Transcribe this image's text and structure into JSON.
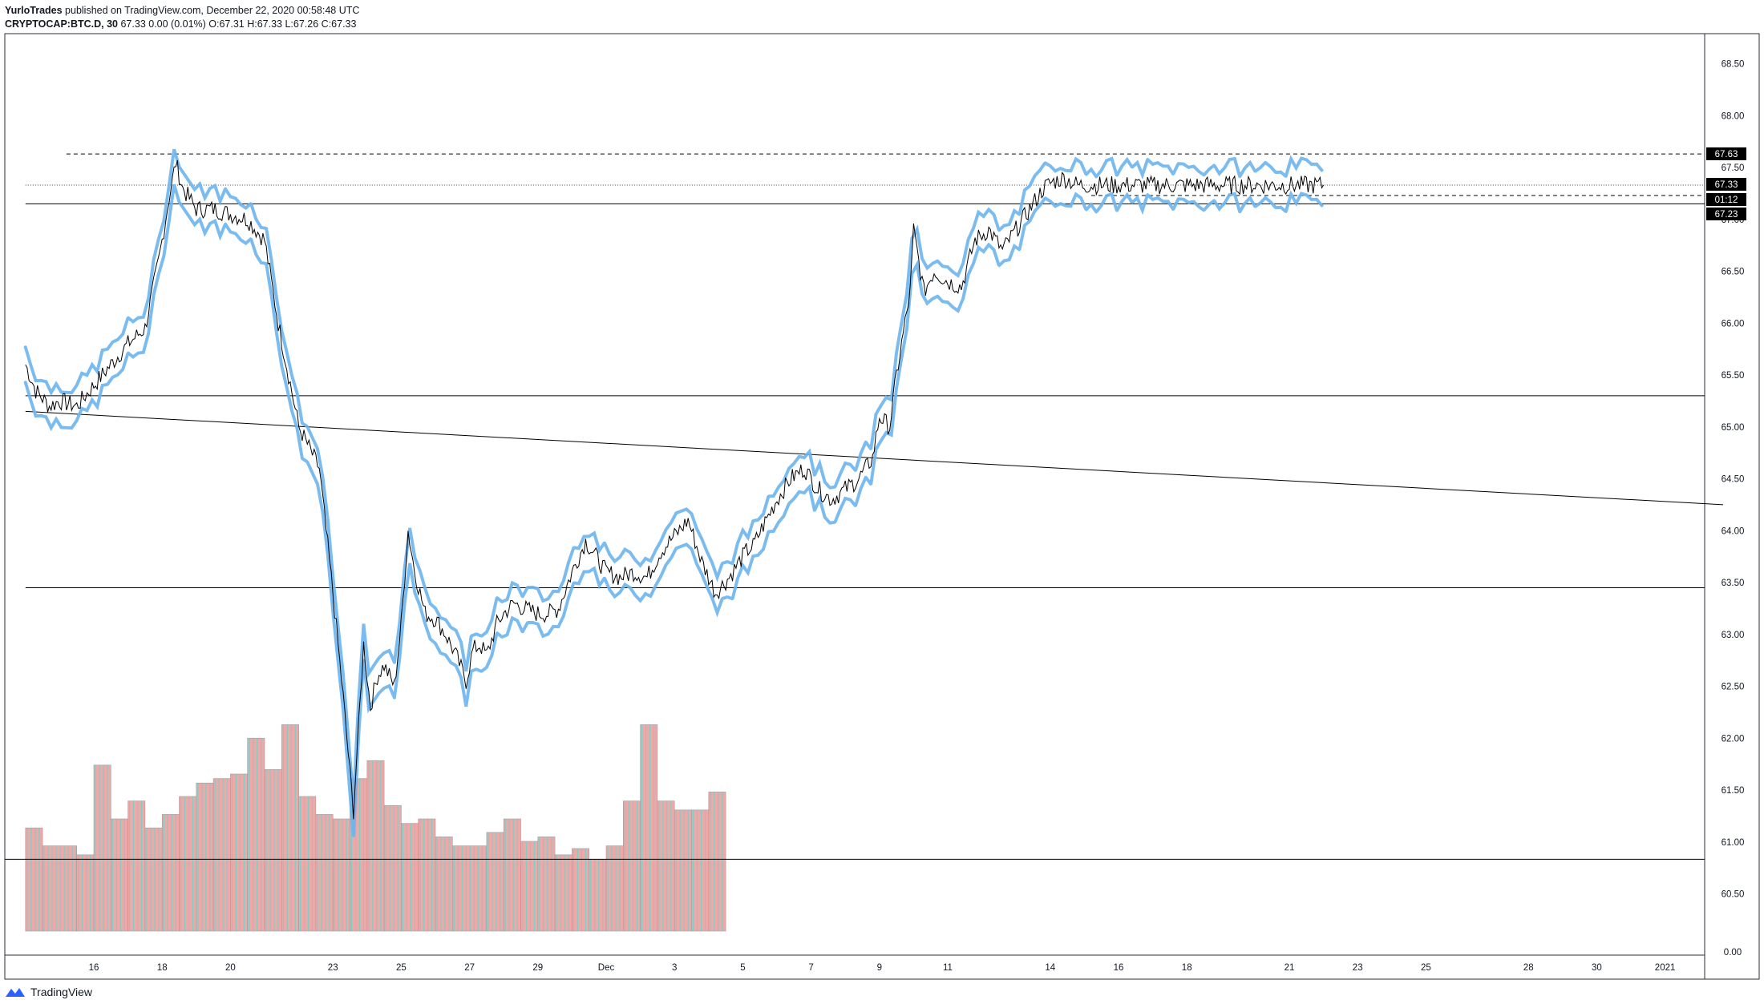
{
  "header": {
    "author": "YurloTrades",
    "published": "published on TradingView.com, December 22, 2020 00:58:48 UTC",
    "symbol": "CRYPTOCAP:BTC.D, 30",
    "quote": "67.33 0.00 (0.01%) O:67.31 H:67.33 L:67.26 C:67.33"
  },
  "brand": {
    "label": "TradingView",
    "icon": "tradingview-logo-icon"
  },
  "price_labels": {
    "resistance": "67.63",
    "last": "67.33",
    "countdown": "01:12",
    "support": "67.23"
  },
  "colors": {
    "candle": "#000000",
    "envelope": "#6cb4ee",
    "volume_down": "#f0a7a7",
    "volume_up": "#7fcfc4",
    "line": "#000000",
    "label_bg": "#000000"
  },
  "chart_data": {
    "type": "line",
    "title": "CRYPTOCAP:BTC.D, 30",
    "xlabel": "",
    "ylabel": "",
    "ylim": [
      -0.3,
      68.9
    ],
    "yticks": [
      "68.50",
      "68.00",
      "67.50",
      "67.00",
      "66.50",
      "66.00",
      "65.50",
      "65.00",
      "64.50",
      "64.00",
      "63.50",
      "63.00",
      "62.50",
      "62.00",
      "61.50",
      "61.00",
      "60.50",
      "0.00"
    ],
    "xticks": [
      {
        "label": "16",
        "day": 15
      },
      {
        "label": "18",
        "day": 17
      },
      {
        "label": "20",
        "day": 19
      },
      {
        "label": "23",
        "day": 22
      },
      {
        "label": "25",
        "day": 24
      },
      {
        "label": "27",
        "day": 26
      },
      {
        "label": "29",
        "day": 28
      },
      {
        "label": "Dec",
        "day": 30
      },
      {
        "label": "3",
        "day": 32
      },
      {
        "label": "5",
        "day": 34
      },
      {
        "label": "7",
        "day": 36
      },
      {
        "label": "9",
        "day": 38
      },
      {
        "label": "11",
        "day": 40
      },
      {
        "label": "14",
        "day": 43
      },
      {
        "label": "16",
        "day": 45
      },
      {
        "label": "18",
        "day": 47
      },
      {
        "label": "21",
        "day": 50
      },
      {
        "label": "23",
        "day": 52
      },
      {
        "label": "25",
        "day": 54
      },
      {
        "label": "28",
        "day": 57
      },
      {
        "label": "30",
        "day": 59
      },
      {
        "label": "2021",
        "day": 61
      }
    ],
    "series": [
      {
        "name": "",
        "x_day": [
          13.0,
          13.3,
          13.7,
          14.0,
          14.5,
          15.0,
          15.5,
          16.0,
          16.5,
          16.9,
          17.2,
          17.4,
          17.6,
          17.8,
          18.0,
          18.5,
          19.0,
          19.5,
          20.0,
          20.4,
          20.7,
          21.0,
          21.3,
          21.6,
          21.8,
          22.0,
          22.3,
          22.6,
          22.9,
          23.1,
          23.3,
          23.5,
          23.8,
          24.0,
          24.2,
          24.4,
          24.7,
          25.0,
          25.3,
          25.6,
          25.9,
          26.0,
          26.1,
          26.3,
          26.5,
          26.8,
          27.0,
          27.3,
          27.6,
          28.0,
          28.3,
          28.6,
          29.0,
          29.4,
          29.7,
          30.0,
          30.4,
          30.8,
          31.2,
          31.6,
          32.0,
          32.4,
          32.8,
          33.2,
          33.6,
          33.9,
          34.0,
          34.1,
          34.3,
          34.6,
          35.0,
          35.4,
          35.8,
          36.2,
          36.6,
          37.0,
          37.4,
          37.8,
          38.0,
          38.3,
          38.5,
          38.9,
          39.0,
          39.3,
          39.6,
          40.0,
          40.4,
          40.8,
          41.2,
          41.6,
          42.0,
          42.4,
          42.8,
          43.0,
          43.4,
          43.8,
          44.2,
          44.6,
          45.0,
          45.4,
          45.8,
          46.0,
          46.3,
          46.6,
          46.9,
          47.0,
          47.2,
          47.5,
          47.8,
          48.0,
          48.4,
          48.8,
          49.2,
          49.5,
          49.7,
          50.0,
          50.3,
          50.6,
          50.9,
          51.0
        ],
        "close": [
          65.6,
          65.35,
          65.2,
          65.25,
          65.2,
          65.4,
          65.6,
          65.8,
          65.95,
          66.6,
          67.2,
          67.55,
          67.3,
          67.2,
          67.1,
          67.1,
          67.05,
          67.0,
          66.8,
          66.0,
          65.5,
          65.0,
          64.8,
          64.6,
          64.0,
          63.4,
          62.4,
          61.3,
          62.9,
          62.3,
          62.6,
          62.7,
          62.5,
          63.1,
          64.0,
          63.6,
          63.2,
          63.15,
          63.0,
          62.8,
          62.55,
          62.7,
          62.85,
          62.9,
          62.8,
          63.1,
          63.2,
          63.3,
          63.25,
          63.2,
          63.2,
          63.25,
          63.6,
          63.9,
          63.75,
          63.6,
          63.55,
          63.6,
          63.55,
          63.8,
          63.95,
          64.1,
          63.7,
          63.4,
          63.55,
          63.7,
          63.75,
          63.8,
          63.85,
          64.05,
          64.3,
          64.5,
          64.6,
          64.4,
          64.3,
          64.4,
          64.5,
          64.7,
          65.1,
          65.0,
          65.5,
          66.3,
          66.9,
          66.3,
          66.5,
          66.4,
          66.35,
          66.8,
          66.9,
          66.7,
          66.9,
          67.1,
          67.3,
          67.35,
          67.4,
          67.33,
          67.33,
          67.33,
          67.33,
          67.33,
          67.33,
          67.33,
          67.33,
          67.33,
          67.33,
          67.33,
          67.33,
          67.33,
          67.33,
          67.33,
          67.33,
          67.33,
          67.33,
          67.33,
          67.33,
          67.33,
          67.33,
          67.33,
          67.33,
          67.33
        ]
      }
    ],
    "volume": [
      {
        "start_day": 13.0,
        "value": 1.15
      },
      {
        "start_day": 13.5,
        "value": 0.95
      },
      {
        "start_day": 14.5,
        "value": 0.85
      },
      {
        "start_day": 15.0,
        "value": 1.85
      },
      {
        "start_day": 15.5,
        "value": 1.25
      },
      {
        "start_day": 16.0,
        "value": 1.45
      },
      {
        "start_day": 16.5,
        "value": 1.15
      },
      {
        "start_day": 17.0,
        "value": 1.3
      },
      {
        "start_day": 17.5,
        "value": 1.5
      },
      {
        "start_day": 18.0,
        "value": 1.65
      },
      {
        "start_day": 18.5,
        "value": 1.7
      },
      {
        "start_day": 19.0,
        "value": 1.75
      },
      {
        "start_day": 19.5,
        "value": 2.15
      },
      {
        "start_day": 20.0,
        "value": 1.8
      },
      {
        "start_day": 20.5,
        "value": 2.3
      },
      {
        "start_day": 21.0,
        "value": 1.5
      },
      {
        "start_day": 21.5,
        "value": 1.3
      },
      {
        "start_day": 22.0,
        "value": 1.25
      },
      {
        "start_day": 22.5,
        "value": 1.7
      },
      {
        "start_day": 23.0,
        "value": 1.9
      },
      {
        "start_day": 23.5,
        "value": 1.4
      },
      {
        "start_day": 24.0,
        "value": 1.2
      },
      {
        "start_day": 24.5,
        "value": 1.25
      },
      {
        "start_day": 25.0,
        "value": 1.05
      },
      {
        "start_day": 25.5,
        "value": 0.95
      },
      {
        "start_day": 26.5,
        "value": 1.1
      },
      {
        "start_day": 27.0,
        "value": 1.25
      },
      {
        "start_day": 27.5,
        "value": 1.0
      },
      {
        "start_day": 28.0,
        "value": 1.05
      },
      {
        "start_day": 28.5,
        "value": 0.85
      },
      {
        "start_day": 29.0,
        "value": 0.92
      },
      {
        "start_day": 29.5,
        "value": 0.8
      },
      {
        "start_day": 30.0,
        "value": 0.95
      },
      {
        "start_day": 30.5,
        "value": 1.45
      },
      {
        "start_day": 31.0,
        "value": 2.3
      },
      {
        "start_day": 31.5,
        "value": 1.45
      },
      {
        "start_day": 32.0,
        "value": 1.35
      },
      {
        "start_day": 32.5,
        "value": 1.35
      },
      {
        "start_day": 33.0,
        "value": 1.55
      }
    ],
    "volume_scale_max": 2.5,
    "horizontal_lines": [
      {
        "y": 67.63,
        "style": "dashed",
        "from_day": 14.2
      },
      {
        "y": 67.33,
        "style": "dotted",
        "from_day": 13.0
      },
      {
        "y": 67.15,
        "style": "solid",
        "from_day": 13.0
      },
      {
        "y": 67.23,
        "style": "dashed",
        "from_day": 44.2
      },
      {
        "y": 65.3,
        "style": "solid",
        "from_day": 13.0
      },
      {
        "y": 63.45,
        "style": "solid",
        "from_day": 13.0
      }
    ],
    "trend_lines": [
      {
        "from_day": 13.0,
        "from_y": 65.15,
        "to_day": 62.7,
        "to_y": 64.25
      }
    ],
    "volume_baseline_line": {
      "value": 0.8
    }
  }
}
